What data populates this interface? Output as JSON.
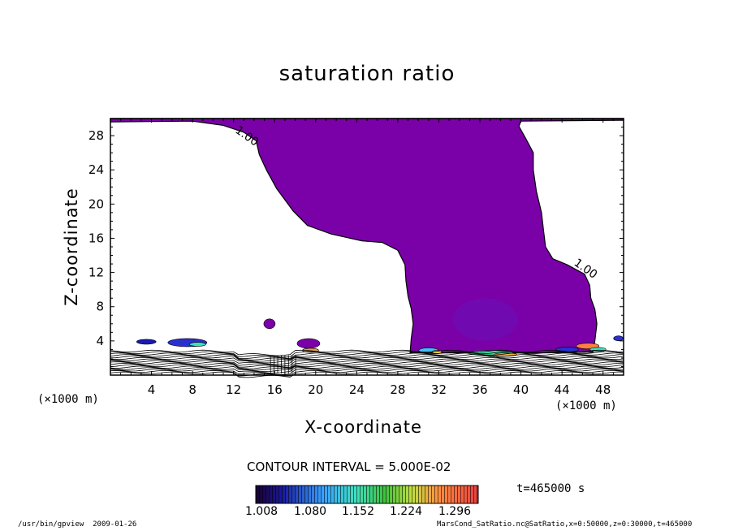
{
  "chart_data": {
    "type": "contour",
    "title": "saturation ratio",
    "xlabel": "X-coordinate",
    "ylabel": "Z-coordinate",
    "x_unit": "(×1000 m)",
    "y_unit": "(×1000 m)",
    "xlim": [
      0,
      50
    ],
    "ylim": [
      0,
      30
    ],
    "x_ticks": [
      4,
      8,
      12,
      16,
      20,
      24,
      28,
      32,
      36,
      40,
      44,
      48
    ],
    "y_ticks": [
      4,
      8,
      12,
      16,
      20,
      24,
      28
    ],
    "contour_interval": "CONTOUR INTERVAL = 5.000E-02",
    "contour_labels": [
      {
        "text": "1.00",
        "x": 13.1,
        "y": 27.6
      },
      {
        "text": "1.00",
        "x": 46.1,
        "y": 12.1
      }
    ],
    "time": "t=465000 s",
    "colorbar": {
      "tick_labels": [
        "1.008",
        "1.080",
        "1.152",
        "1.224",
        "1.296"
      ],
      "min": 1.008,
      "max": 1.368
    },
    "colors": {
      "saturated_region": "#7a00a8",
      "frame": "#000000"
    },
    "saturated_region_outline": [
      [
        0,
        29.6
      ],
      [
        8,
        29.7
      ],
      [
        11,
        29.2
      ],
      [
        13,
        28.4
      ],
      [
        14.2,
        27.4
      ],
      [
        14.5,
        25.8
      ],
      [
        15.2,
        24.0
      ],
      [
        16.2,
        21.8
      ],
      [
        17.8,
        19.2
      ],
      [
        19.2,
        17.5
      ],
      [
        21.5,
        16.5
      ],
      [
        24.5,
        15.7
      ],
      [
        26.5,
        15.5
      ],
      [
        28,
        14.6
      ],
      [
        28.7,
        12.9
      ],
      [
        28.8,
        11.0
      ],
      [
        29,
        9.2
      ],
      [
        29.3,
        7.8
      ],
      [
        29.5,
        6.0
      ],
      [
        29.3,
        4.2
      ],
      [
        29.2,
        2.6
      ],
      [
        36,
        2.6
      ],
      [
        42,
        2.6
      ],
      [
        47,
        2.7
      ],
      [
        47.2,
        4.0
      ],
      [
        47.4,
        6.0
      ],
      [
        47.2,
        7.7
      ],
      [
        46.8,
        9.0
      ],
      [
        46.7,
        10.5
      ],
      [
        46.2,
        11.8
      ],
      [
        44.5,
        12.9
      ],
      [
        43.1,
        13.6
      ],
      [
        42.4,
        15.0
      ],
      [
        42.2,
        16.9
      ],
      [
        42,
        19.0
      ],
      [
        41.5,
        21.5
      ],
      [
        41.2,
        24.0
      ],
      [
        41.2,
        26.0
      ],
      [
        40.5,
        27.6
      ],
      [
        39.8,
        29.1
      ],
      [
        40,
        29.7
      ],
      [
        50,
        29.8
      ]
    ]
  }
}
